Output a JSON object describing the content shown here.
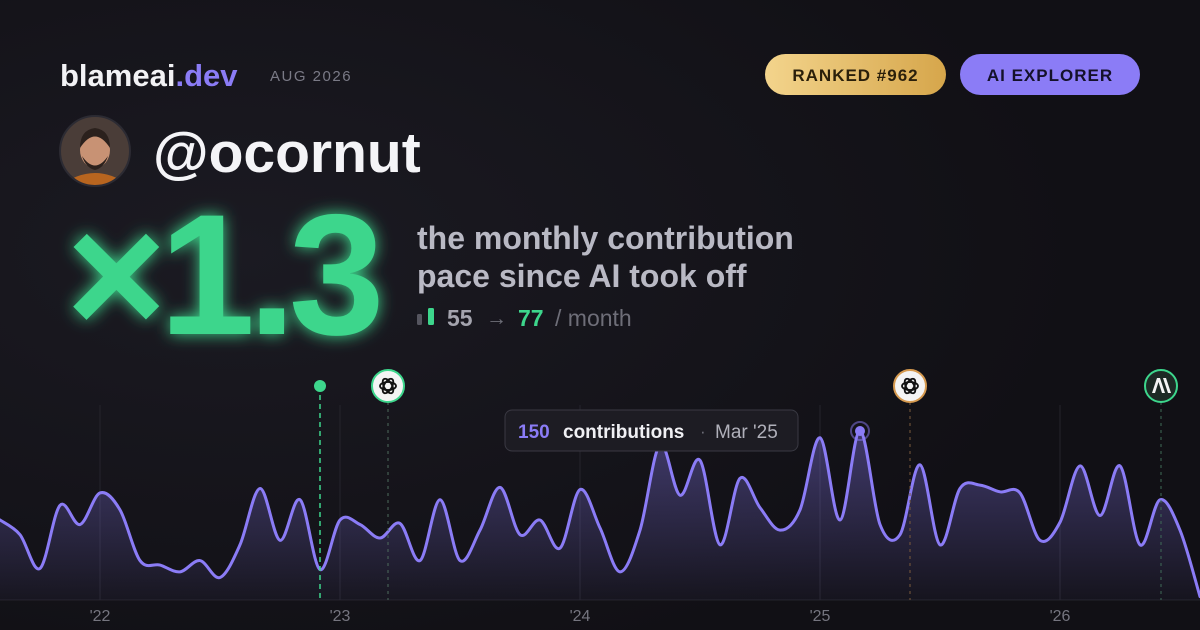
{
  "header": {
    "brand": "blameai",
    "tld": ".dev",
    "date": "AUG 2026",
    "rank_badge": "RANKED #962",
    "tier_badge": "AI EXPLORER"
  },
  "profile": {
    "handle": "@ocornut"
  },
  "stat": {
    "multiplier": "×1.3",
    "line1": "the monthly contribution",
    "line2": "pace since AI took off",
    "before": 55,
    "arrow": "→",
    "after": 77,
    "unit": "/ month"
  },
  "chart_data": {
    "type": "line",
    "categories": [
      null,
      null,
      null,
      null,
      null,
      "'22",
      null,
      null,
      null,
      null,
      null,
      null,
      null,
      null,
      null,
      null,
      null,
      "'23",
      null,
      null,
      null,
      null,
      null,
      null,
      null,
      null,
      null,
      null,
      null,
      "'24",
      null,
      null,
      null,
      null,
      null,
      null,
      null,
      null,
      null,
      null,
      null,
      "'25",
      null,
      null,
      null,
      null,
      null,
      null,
      null,
      null,
      null,
      null,
      null,
      "'26",
      null,
      null,
      null,
      null,
      null,
      null,
      null
    ],
    "values": [
      71,
      58,
      28,
      84,
      67,
      95,
      80,
      35,
      31,
      25,
      35,
      20,
      49,
      99,
      53,
      89,
      27,
      71,
      67,
      55,
      68,
      35,
      89,
      35,
      62,
      100,
      58,
      71,
      46,
      98,
      64,
      25,
      62,
      138,
      93,
      124,
      49,
      108,
      82,
      62,
      80,
      144,
      71,
      150,
      67,
      58,
      120,
      49,
      99,
      102,
      96,
      95,
      53,
      69,
      119,
      75,
      119,
      49,
      89,
      62,
      3
    ],
    "color": "#8b7cf6",
    "ylim": [
      0,
      150
    ],
    "tooltip": {
      "value_index": 43,
      "label": "contributions",
      "separator": "·",
      "date": "Mar '25"
    }
  }
}
